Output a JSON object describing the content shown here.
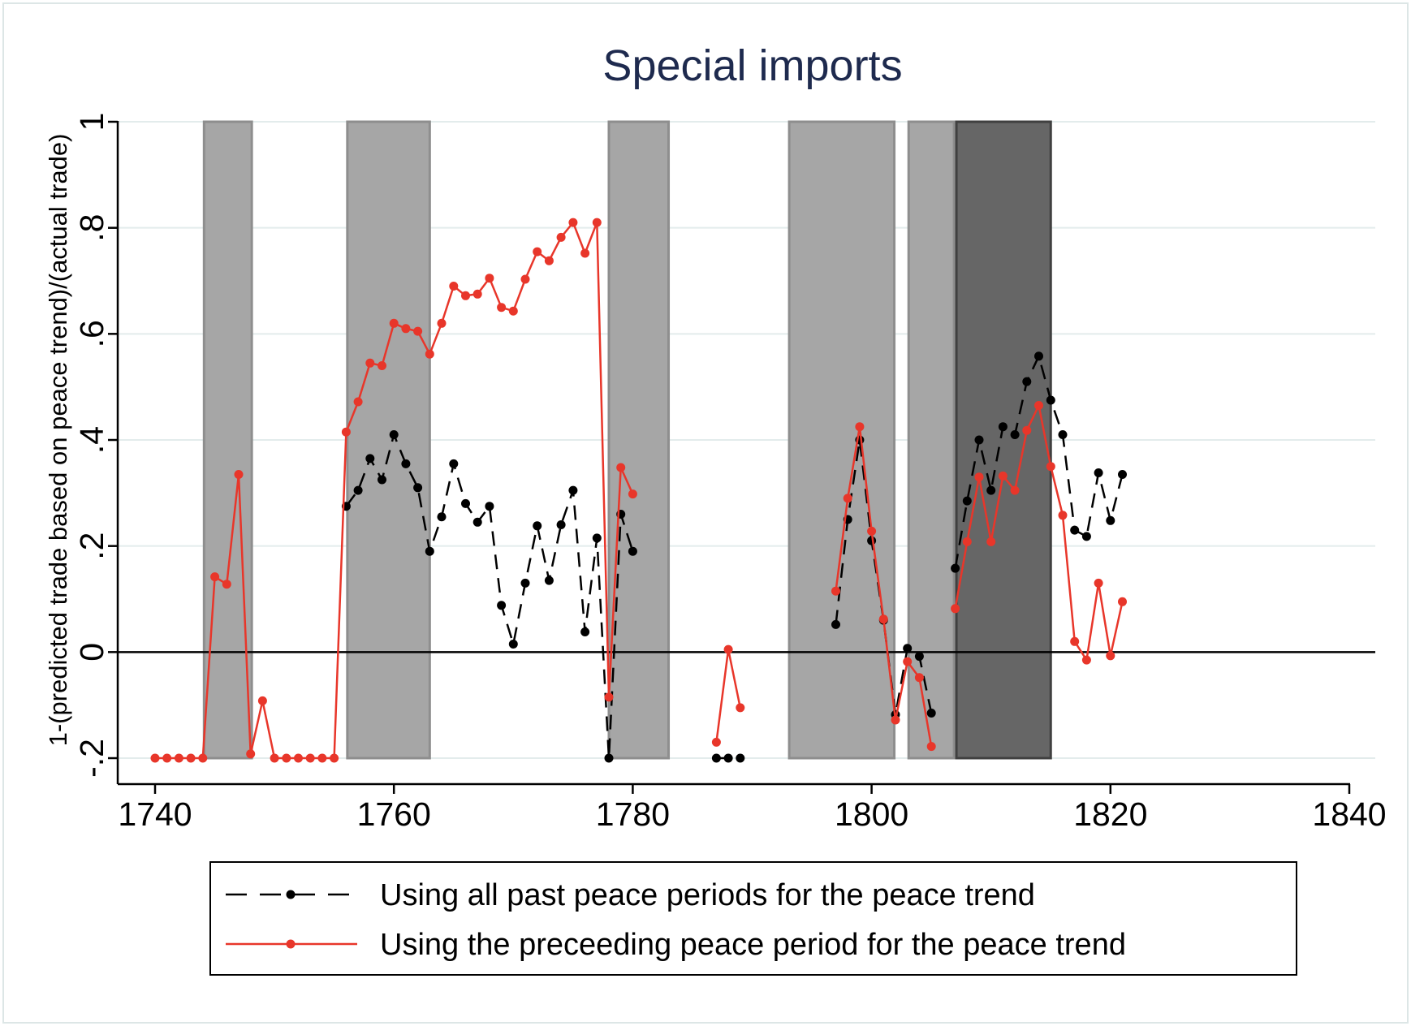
{
  "chart_data": {
    "type": "line",
    "title": "Special imports",
    "xlabel": "",
    "ylabel": "1-(predicted trade based on peace trend)/(actual trade)",
    "xlim": [
      1740,
      1840
    ],
    "ylim": [
      -0.2,
      1
    ],
    "x_ticks": [
      1740,
      1760,
      1780,
      1800,
      1820,
      1840
    ],
    "x_tick_labels": [
      "1740",
      "1760",
      "1780",
      "1800",
      "1820",
      "1840"
    ],
    "y_ticks": [
      -0.2,
      0,
      0.2,
      0.4,
      0.6,
      0.8,
      1
    ],
    "y_tick_labels": [
      "-.2",
      "0",
      ".2",
      ".4",
      ".6",
      ".8",
      "1"
    ],
    "grid": true,
    "legend_position": "bottom",
    "shaded_periods": [
      {
        "start": 1744.1,
        "end": 1748.1,
        "shade": "light"
      },
      {
        "start": 1756.1,
        "end": 1763.0,
        "shade": "light"
      },
      {
        "start": 1778.0,
        "end": 1783.0,
        "shade": "light"
      },
      {
        "start": 1793.1,
        "end": 1801.9,
        "shade": "light"
      },
      {
        "start": 1803.1,
        "end": 1806.9,
        "shade": "light"
      },
      {
        "start": 1807.1,
        "end": 1815.0,
        "shade": "dark"
      }
    ],
    "colors": {
      "light_shade": "#a6a6a6",
      "light_shade_edge": "#8e8e8e",
      "dark_shade": "#666666",
      "dark_shade_edge": "#404040",
      "grid": "#e3ecec",
      "title": "#1e2a4e"
    },
    "series": [
      {
        "name": "Using all past peace periods for the peace trend",
        "color": "#000000",
        "dash": "dashed",
        "points": [
          [
            1756,
            0.275
          ],
          [
            1757,
            0.305
          ],
          [
            1758,
            0.365
          ],
          [
            1759,
            0.325
          ],
          [
            1760,
            0.41
          ],
          [
            1761,
            0.355
          ],
          [
            1762,
            0.31
          ],
          [
            1763,
            0.19
          ],
          [
            1764,
            0.255
          ],
          [
            1765,
            0.355
          ],
          [
            1766,
            0.28
          ],
          [
            1767,
            0.245
          ],
          [
            1768,
            0.275
          ],
          [
            1769,
            0.088
          ],
          [
            1770,
            0.015
          ],
          [
            1771,
            0.13
          ],
          [
            1772,
            0.238
          ],
          [
            1773,
            0.135
          ],
          [
            1774,
            0.24
          ],
          [
            1775,
            0.305
          ],
          [
            1776,
            0.038
          ],
          [
            1777,
            0.215
          ],
          [
            1778,
            -0.2
          ],
          [
            1779,
            0.26
          ],
          [
            1780,
            0.19
          ],
          null,
          [
            1787,
            -0.2
          ],
          [
            1788,
            -0.2
          ],
          [
            1789,
            -0.2
          ],
          null,
          [
            1797,
            0.052
          ],
          [
            1798,
            0.25
          ],
          [
            1799,
            0.4
          ],
          [
            1800,
            0.21
          ],
          [
            1801,
            0.06
          ],
          [
            1802,
            -0.118
          ],
          [
            1803,
            0.007
          ],
          [
            1804,
            -0.008
          ],
          [
            1805,
            -0.115
          ],
          null,
          [
            1807,
            0.158
          ],
          [
            1808,
            0.285
          ],
          [
            1809,
            0.4
          ],
          [
            1810,
            0.305
          ],
          [
            1811,
            0.425
          ],
          [
            1812,
            0.41
          ],
          [
            1813,
            0.51
          ],
          [
            1814,
            0.558
          ],
          [
            1815,
            0.475
          ],
          [
            1816,
            0.41
          ],
          [
            1817,
            0.23
          ],
          [
            1818,
            0.218
          ],
          [
            1819,
            0.338
          ],
          [
            1820,
            0.248
          ],
          [
            1821,
            0.335
          ]
        ]
      },
      {
        "name": "Using the preceeding peace period for the peace trend",
        "color": "#e8362a",
        "dash": "solid",
        "points": [
          [
            1740,
            -0.2
          ],
          [
            1741,
            -0.2
          ],
          [
            1742,
            -0.2
          ],
          [
            1743,
            -0.2
          ],
          [
            1744,
            -0.2
          ],
          [
            1745,
            0.142
          ],
          [
            1746,
            0.128
          ],
          [
            1747,
            0.335
          ],
          [
            1748,
            -0.192
          ],
          [
            1749,
            -0.092
          ],
          [
            1750,
            -0.2
          ],
          [
            1751,
            -0.2
          ],
          [
            1752,
            -0.2
          ],
          [
            1753,
            -0.2
          ],
          [
            1754,
            -0.2
          ],
          [
            1755,
            -0.2
          ],
          [
            1756,
            0.415
          ],
          [
            1757,
            0.472
          ],
          [
            1758,
            0.545
          ],
          [
            1759,
            0.54
          ],
          [
            1760,
            0.62
          ],
          [
            1761,
            0.61
          ],
          [
            1762,
            0.605
          ],
          [
            1763,
            0.562
          ],
          [
            1764,
            0.62
          ],
          [
            1765,
            0.69
          ],
          [
            1766,
            0.672
          ],
          [
            1767,
            0.675
          ],
          [
            1768,
            0.705
          ],
          [
            1769,
            0.65
          ],
          [
            1770,
            0.643
          ],
          [
            1771,
            0.703
          ],
          [
            1772,
            0.755
          ],
          [
            1773,
            0.738
          ],
          [
            1774,
            0.782
          ],
          [
            1775,
            0.81
          ],
          [
            1776,
            0.752
          ],
          [
            1777,
            0.81
          ],
          [
            1778,
            -0.085
          ],
          [
            1779,
            0.348
          ],
          [
            1780,
            0.298
          ],
          null,
          [
            1787,
            -0.17
          ],
          [
            1788,
            0.005
          ],
          [
            1789,
            -0.105
          ],
          null,
          [
            1797,
            0.115
          ],
          [
            1798,
            0.29
          ],
          [
            1799,
            0.425
          ],
          [
            1800,
            0.228
          ],
          [
            1801,
            0.062
          ],
          [
            1802,
            -0.128
          ],
          [
            1803,
            -0.018
          ],
          [
            1804,
            -0.048
          ],
          [
            1805,
            -0.178
          ],
          null,
          [
            1807,
            0.082
          ],
          [
            1808,
            0.208
          ],
          [
            1809,
            0.33
          ],
          [
            1810,
            0.208
          ],
          [
            1811,
            0.332
          ],
          [
            1812,
            0.305
          ],
          [
            1813,
            0.418
          ],
          [
            1814,
            0.465
          ],
          [
            1815,
            0.35
          ],
          [
            1816,
            0.258
          ],
          [
            1817,
            0.02
          ],
          [
            1818,
            -0.015
          ],
          [
            1819,
            0.13
          ],
          [
            1820,
            -0.007
          ],
          [
            1821,
            0.095
          ]
        ]
      }
    ]
  }
}
